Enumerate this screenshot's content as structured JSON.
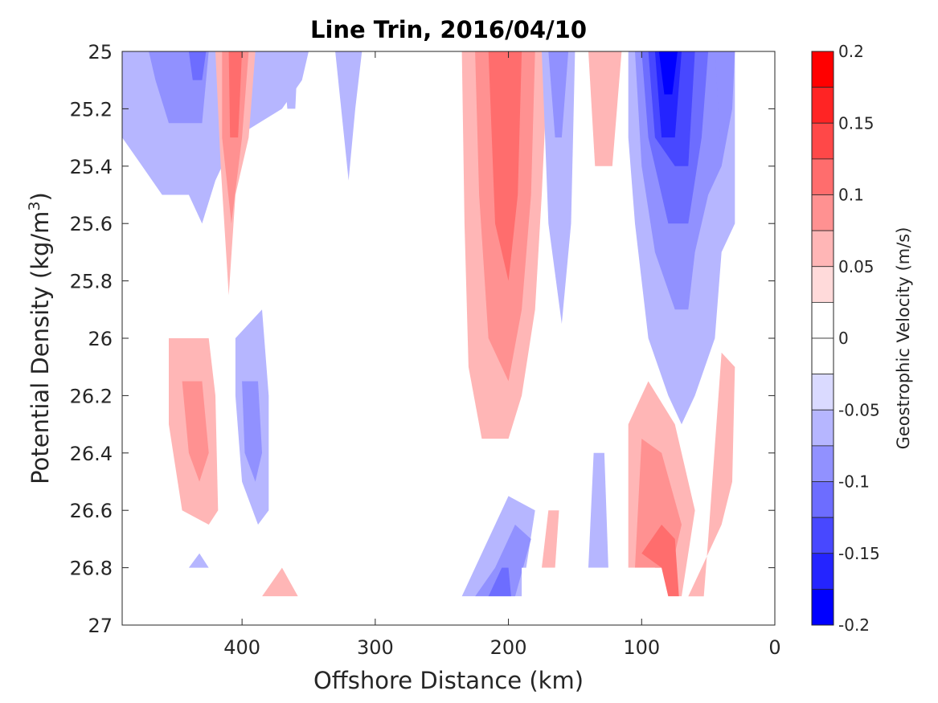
{
  "chart_data": {
    "type": "heatmap",
    "subtype": "filled-contour",
    "title": "Line Trin, 2016/04/10",
    "xlabel": "Offshore Distance (km)",
    "ylabel_main": "Potential Density (kg/m",
    "ylabel_sup": "3",
    "ylabel_close": ")",
    "xlim": [
      490,
      0
    ],
    "x_reversed": true,
    "ylim": [
      25,
      27
    ],
    "y_reversed": true,
    "xticks": [
      400,
      300,
      200,
      100,
      0
    ],
    "yticks": [
      25,
      25.2,
      25.4,
      25.6,
      25.8,
      26,
      26.2,
      26.4,
      26.6,
      26.8,
      27
    ],
    "ytick_labels": [
      "25",
      "25.2",
      "25.4",
      "25.6",
      "25.8",
      "26",
      "26.2",
      "26.4",
      "26.6",
      "26.8",
      "27"
    ],
    "xtick_labels": [
      "400",
      "300",
      "200",
      "100",
      "0"
    ],
    "colorbar": {
      "label": "Geostrophic Velocity (m/s)",
      "range": [
        -0.2,
        0.2
      ],
      "tick_values": [
        0.2,
        0.15,
        0.1,
        0.05,
        0,
        -0.05,
        -0.1,
        -0.15,
        -0.2
      ],
      "tick_labels": [
        "0.2",
        "0.15",
        "0.1",
        "0.05",
        "0",
        "-0.05",
        "-0.1",
        "-0.15",
        "-0.2"
      ],
      "levels": [
        {
          "min": 0.175,
          "max": 0.2,
          "color": "#ff0000"
        },
        {
          "min": 0.15,
          "max": 0.175,
          "color": "#ff2424"
        },
        {
          "min": 0.125,
          "max": 0.15,
          "color": "#ff4848"
        },
        {
          "min": 0.1,
          "max": 0.125,
          "color": "#ff6d6d"
        },
        {
          "min": 0.075,
          "max": 0.1,
          "color": "#ff9191"
        },
        {
          "min": 0.05,
          "max": 0.075,
          "color": "#ffb6b6"
        },
        {
          "min": 0.025,
          "max": 0.05,
          "color": "#ffdada"
        },
        {
          "min": 0.0,
          "max": 0.025,
          "color": "#ffffff"
        },
        {
          "min": -0.025,
          "max": 0.0,
          "color": "#ffffff"
        },
        {
          "min": -0.05,
          "max": -0.025,
          "color": "#dadaff"
        },
        {
          "min": -0.075,
          "max": -0.05,
          "color": "#b6b6ff"
        },
        {
          "min": -0.1,
          "max": -0.075,
          "color": "#9191ff"
        },
        {
          "min": -0.125,
          "max": -0.1,
          "color": "#6d6dff"
        },
        {
          "min": -0.15,
          "max": -0.125,
          "color": "#4848ff"
        },
        {
          "min": -0.175,
          "max": -0.15,
          "color": "#2424ff"
        },
        {
          "min": -0.2,
          "max": -0.175,
          "color": "#0000ff"
        }
      ]
    },
    "regions": [
      {
        "name": "neg-470-shelf-outer",
        "level": -0.05,
        "points": [
          [
            490,
            25
          ],
          [
            350,
            25
          ],
          [
            355,
            25.1
          ],
          [
            370,
            25.2
          ],
          [
            405,
            25.3
          ],
          [
            420,
            25.45
          ],
          [
            430,
            25.6
          ],
          [
            440,
            25.5
          ],
          [
            460,
            25.5
          ],
          [
            475,
            25.4
          ],
          [
            490,
            25.3
          ]
        ]
      },
      {
        "name": "neg-440-core-a",
        "level": -0.075,
        "points": [
          [
            470,
            25
          ],
          [
            425,
            25
          ],
          [
            430,
            25.25
          ],
          [
            455,
            25.25
          ],
          [
            465,
            25.1
          ]
        ]
      },
      {
        "name": "neg-440-core-b",
        "level": -0.1,
        "points": [
          [
            440,
            25
          ],
          [
            427,
            25
          ],
          [
            430,
            25.1
          ],
          [
            437,
            25.1
          ]
        ]
      },
      {
        "name": "pos-405-outer",
        "level": 0.05,
        "points": [
          [
            420,
            25
          ],
          [
            390,
            25
          ],
          [
            395,
            25.3
          ],
          [
            405,
            25.5
          ],
          [
            410,
            25.85
          ],
          [
            416,
            25.4
          ]
        ]
      },
      {
        "name": "pos-405-mid",
        "level": 0.075,
        "points": [
          [
            415,
            25
          ],
          [
            395,
            25
          ],
          [
            400,
            25.3
          ],
          [
            408,
            25.6
          ],
          [
            415,
            25.3
          ]
        ]
      },
      {
        "name": "pos-405-in",
        "level": 0.1,
        "points": [
          [
            410,
            25
          ],
          [
            400,
            25
          ],
          [
            403,
            25.3
          ],
          [
            409,
            25.3
          ]
        ]
      },
      {
        "name": "neg-365-spot",
        "level": -0.05,
        "points": [
          [
            370,
            25
          ],
          [
            358,
            25
          ],
          [
            360,
            25.2
          ],
          [
            366,
            25.2
          ]
        ]
      },
      {
        "name": "neg-320-spot",
        "level": -0.05,
        "points": [
          [
            330,
            25
          ],
          [
            310,
            25
          ],
          [
            315,
            25.2
          ],
          [
            320,
            25.45
          ]
        ]
      },
      {
        "name": "pos-200-outer",
        "level": 0.05,
        "points": [
          [
            235,
            25
          ],
          [
            170,
            25
          ],
          [
            175,
            25.5
          ],
          [
            180,
            25.9
          ],
          [
            190,
            26.2
          ],
          [
            200,
            26.35
          ],
          [
            220,
            26.35
          ],
          [
            230,
            26.1
          ],
          [
            233,
            25.6
          ]
        ]
      },
      {
        "name": "pos-200-mid",
        "level": 0.075,
        "points": [
          [
            225,
            25
          ],
          [
            180,
            25
          ],
          [
            183,
            25.5
          ],
          [
            190,
            25.9
          ],
          [
            200,
            26.15
          ],
          [
            215,
            26
          ],
          [
            222,
            25.5
          ]
        ]
      },
      {
        "name": "pos-200-in",
        "level": 0.1,
        "points": [
          [
            215,
            25
          ],
          [
            190,
            25
          ],
          [
            193,
            25.5
          ],
          [
            200,
            25.8
          ],
          [
            210,
            25.6
          ]
        ]
      },
      {
        "name": "neg-165-outer",
        "level": -0.05,
        "points": [
          [
            175,
            25
          ],
          [
            150,
            25
          ],
          [
            153,
            25.6
          ],
          [
            160,
            25.95
          ],
          [
            170,
            25.6
          ]
        ]
      },
      {
        "name": "neg-165-in",
        "level": -0.075,
        "points": [
          [
            170,
            25
          ],
          [
            155,
            25
          ],
          [
            160,
            25.3
          ],
          [
            165,
            25.3
          ]
        ]
      },
      {
        "name": "pos-130-spot",
        "level": 0.05,
        "points": [
          [
            140,
            25
          ],
          [
            115,
            25
          ],
          [
            122,
            25.4
          ],
          [
            135,
            25.4
          ]
        ]
      },
      {
        "name": "neg-80-outer",
        "level": -0.05,
        "points": [
          [
            110,
            25
          ],
          [
            30,
            25
          ],
          [
            30,
            25.6
          ],
          [
            40,
            25.7
          ],
          [
            45,
            26
          ],
          [
            60,
            26.2
          ],
          [
            70,
            26.3
          ],
          [
            80,
            26.2
          ],
          [
            95,
            26
          ],
          [
            105,
            25.6
          ],
          [
            110,
            25.3
          ]
        ]
      },
      {
        "name": "neg-80-mid1",
        "level": -0.075,
        "points": [
          [
            105,
            25
          ],
          [
            35,
            25
          ],
          [
            40,
            25.4
          ],
          [
            50,
            25.5
          ],
          [
            60,
            25.7
          ],
          [
            65,
            25.9
          ],
          [
            75,
            25.9
          ],
          [
            90,
            25.7
          ],
          [
            100,
            25.4
          ]
        ]
      },
      {
        "name": "neg-80-mid2",
        "level": -0.1,
        "points": [
          [
            100,
            25
          ],
          [
            50,
            25
          ],
          [
            55,
            25.3
          ],
          [
            65,
            25.6
          ],
          [
            80,
            25.6
          ],
          [
            95,
            25.3
          ]
        ]
      },
      {
        "name": "neg-80-in1",
        "level": -0.125,
        "points": [
          [
            95,
            25
          ],
          [
            60,
            25
          ],
          [
            65,
            25.4
          ],
          [
            75,
            25.4
          ],
          [
            90,
            25.3
          ]
        ]
      },
      {
        "name": "neg-80-in2",
        "level": -0.15,
        "points": [
          [
            90,
            25
          ],
          [
            70,
            25
          ],
          [
            75,
            25.3
          ],
          [
            85,
            25.3
          ]
        ]
      },
      {
        "name": "neg-80-core",
        "level": -0.175,
        "points": [
          [
            87,
            25
          ],
          [
            73,
            25
          ],
          [
            77,
            25.15
          ],
          [
            83,
            25.15
          ]
        ]
      },
      {
        "name": "neg-40-tail",
        "level": -0.075,
        "points": [
          [
            45,
            25
          ],
          [
            30,
            25
          ],
          [
            32,
            25.2
          ],
          [
            40,
            25.4
          ]
        ]
      },
      {
        "name": "pos-440-deep-outer",
        "level": 0.05,
        "points": [
          [
            455,
            26
          ],
          [
            425,
            26
          ],
          [
            420,
            26.2
          ],
          [
            418,
            26.6
          ],
          [
            425,
            26.65
          ],
          [
            445,
            26.6
          ],
          [
            455,
            26.3
          ]
        ]
      },
      {
        "name": "pos-440-deep-in",
        "level": 0.075,
        "points": [
          [
            445,
            26.15
          ],
          [
            430,
            26.15
          ],
          [
            425,
            26.4
          ],
          [
            432,
            26.5
          ],
          [
            440,
            26.4
          ]
        ]
      },
      {
        "name": "neg-390-deep-outer",
        "level": -0.05,
        "points": [
          [
            405,
            26
          ],
          [
            385,
            25.9
          ],
          [
            380,
            26.2
          ],
          [
            380,
            26.6
          ],
          [
            388,
            26.65
          ],
          [
            400,
            26.5
          ],
          [
            405,
            26.2
          ]
        ]
      },
      {
        "name": "neg-390-deep-in",
        "level": -0.075,
        "points": [
          [
            400,
            26.15
          ],
          [
            388,
            26.15
          ],
          [
            385,
            26.4
          ],
          [
            390,
            26.5
          ],
          [
            398,
            26.4
          ]
        ]
      },
      {
        "name": "neg-435-small",
        "level": -0.05,
        "points": [
          [
            440,
            26.8
          ],
          [
            432,
            26.75
          ],
          [
            425,
            26.8
          ]
        ]
      },
      {
        "name": "pos-370-small",
        "level": 0.05,
        "points": [
          [
            385,
            26.9
          ],
          [
            370,
            26.8
          ],
          [
            358,
            26.9
          ]
        ]
      },
      {
        "name": "neg-200-deep-outer",
        "level": -0.05,
        "points": [
          [
            235,
            26.9
          ],
          [
            190,
            26.9
          ],
          [
            180,
            26.6
          ],
          [
            200,
            26.55
          ],
          [
            220,
            26.75
          ]
        ]
      },
      {
        "name": "neg-200-deep-mid",
        "level": -0.075,
        "points": [
          [
            225,
            26.9
          ],
          [
            195,
            26.9
          ],
          [
            183,
            26.7
          ],
          [
            195,
            26.65
          ],
          [
            210,
            26.8
          ]
        ]
      },
      {
        "name": "neg-200-deep-in",
        "level": -0.1,
        "points": [
          [
            215,
            26.9
          ],
          [
            198,
            26.9
          ],
          [
            200,
            26.8
          ],
          [
            205,
            26.8
          ]
        ]
      },
      {
        "name": "pos-165-deep",
        "level": 0.05,
        "points": [
          [
            175,
            26.8
          ],
          [
            165,
            26.8
          ],
          [
            162,
            26.6
          ],
          [
            170,
            26.6
          ]
        ]
      },
      {
        "name": "neg-135-deep",
        "level": -0.05,
        "points": [
          [
            140,
            26.8
          ],
          [
            125,
            26.8
          ],
          [
            128,
            26.4
          ],
          [
            136,
            26.4
          ]
        ]
      },
      {
        "name": "pos-90-deep-outer",
        "level": 0.05,
        "points": [
          [
            110,
            26.8
          ],
          [
            85,
            26.8
          ],
          [
            80,
            26.9
          ],
          [
            70,
            26.9
          ],
          [
            60,
            26.6
          ],
          [
            75,
            26.3
          ],
          [
            95,
            26.15
          ],
          [
            110,
            26.3
          ]
        ]
      },
      {
        "name": "pos-90-deep-mid",
        "level": 0.075,
        "points": [
          [
            105,
            26.8
          ],
          [
            85,
            26.8
          ],
          [
            75,
            26.75
          ],
          [
            70,
            26.65
          ],
          [
            85,
            26.4
          ],
          [
            100,
            26.35
          ]
        ]
      },
      {
        "name": "pos-90-deep-in",
        "level": 0.1,
        "points": [
          [
            100,
            26.75
          ],
          [
            85,
            26.8
          ],
          [
            80,
            26.9
          ],
          [
            72,
            26.9
          ],
          [
            75,
            26.7
          ],
          [
            85,
            26.65
          ]
        ]
      },
      {
        "name": "pos-50-deep",
        "level": 0.05,
        "points": [
          [
            65,
            26.9
          ],
          [
            55,
            26.8
          ],
          [
            40,
            26.65
          ],
          [
            32,
            26.5
          ],
          [
            30,
            26.1
          ],
          [
            40,
            26.05
          ],
          [
            50,
            26.7
          ],
          [
            55,
            27
          ],
          [
            60,
            27
          ]
        ]
      }
    ],
    "missing_regions": [
      {
        "name": "masked-bottom-left",
        "points": [
          [
            490,
            26.9
          ],
          [
            490,
            27
          ],
          [
            0,
            27
          ],
          [
            0,
            26.9
          ]
        ]
      },
      {
        "name": "masked-bottom-mid",
        "points": [
          [
            190,
            26.8
          ],
          [
            90,
            26.8
          ],
          [
            90,
            26.9
          ],
          [
            190,
            26.9
          ]
        ]
      }
    ],
    "grid": false
  }
}
